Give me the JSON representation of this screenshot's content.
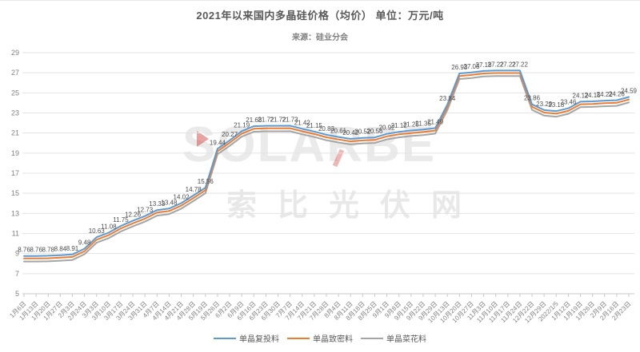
{
  "title": "2021年以来国内多晶硅价格（均价） 单位：万元/吨",
  "source": "来源：硅业分会",
  "watermark": {
    "latin": "SOLARBE",
    "cjk": "索比光伏网"
  },
  "colors": {
    "accent_blue": "#5B9BD5",
    "accent_orange": "#ED7D31",
    "accent_gray": "#A5A5A5",
    "red_accent": "#CD322D"
  },
  "chart_data": {
    "type": "line",
    "title": "2021年以来国内多晶硅价格（均价） 单位：万元/吨",
    "subtitle": "来源：硅业分会",
    "xlabel": "",
    "ylabel": "",
    "ylim": [
      5,
      29
    ],
    "yticks": [
      5,
      7,
      9,
      11,
      13,
      15,
      17,
      19,
      21,
      23,
      25,
      27,
      29
    ],
    "grid": true,
    "legend_position": "bottom",
    "x": [
      "1月6日",
      "1月13日",
      "1月20日",
      "1月27日",
      "2月3日",
      "2月24日",
      "3月3日",
      "3月10日",
      "3月17日",
      "3月24日",
      "3月31日",
      "4月7日",
      "4月14日",
      "4月21日",
      "4月28日",
      "5月19日",
      "5月26日",
      "6月2日",
      "6月9日",
      "6月16日",
      "6月23日",
      "6月30日",
      "7月7日",
      "7月14日",
      "7月21日",
      "7月28日",
      "8月4日",
      "8月11日",
      "8月18日",
      "8月25日",
      "9月1日",
      "9月8日",
      "9月15日",
      "9月22日",
      "9月29日",
      "10月13日",
      "10月20日",
      "10月27日",
      "11月3日",
      "11月10日",
      "11月17日",
      "11月24日",
      "12月22日",
      "12月29日",
      "2022/1/5",
      "1月12日",
      "1月19日",
      "1月26日",
      "2月9日",
      "2月16日",
      "2月23日"
    ],
    "series": [
      {
        "name": "单晶复投料",
        "color": "#5B9BD5",
        "labeled": true,
        "values": [
          8.76,
          8.76,
          8.78,
          8.84,
          8.91,
          9.48,
          10.63,
          11.08,
          11.75,
          12.26,
          12.73,
          13.33,
          13.48,
          14.02,
          14.78,
          15.56,
          19.44,
          20.27,
          21.19,
          21.68,
          21.72,
          21.72,
          21.73,
          21.42,
          21.15,
          20.83,
          20.61,
          20.42,
          20.52,
          20.56,
          20.92,
          21.12,
          21.25,
          21.35,
          21.49,
          23.84,
          26.93,
          27.03,
          27.18,
          27.22,
          27.22,
          27.22,
          23.86,
          23.29,
          23.18,
          23.46,
          24.12,
          24.15,
          24.22,
          24.26,
          24.59
        ]
      },
      {
        "name": "单晶致密料",
        "color": "#ED7D31",
        "labeled": false,
        "values": [
          8.51,
          8.51,
          8.53,
          8.59,
          8.66,
          9.23,
          10.38,
          10.83,
          11.5,
          12.01,
          12.48,
          13.08,
          13.23,
          13.77,
          14.53,
          15.31,
          19.19,
          20.02,
          20.94,
          21.43,
          21.47,
          21.47,
          21.48,
          21.17,
          20.9,
          20.58,
          20.36,
          20.17,
          20.27,
          20.31,
          20.67,
          20.87,
          21.0,
          21.1,
          21.24,
          23.59,
          26.68,
          26.78,
          26.93,
          26.97,
          26.97,
          26.97,
          23.61,
          23.04,
          22.93,
          23.21,
          23.87,
          23.9,
          23.97,
          24.01,
          24.34
        ]
      },
      {
        "name": "单晶菜花料",
        "color": "#A5A5A5",
        "labeled": false,
        "values": [
          8.21,
          8.21,
          8.23,
          8.29,
          8.36,
          8.93,
          10.08,
          10.53,
          11.2,
          11.71,
          12.18,
          12.78,
          12.93,
          13.47,
          14.23,
          15.01,
          18.89,
          19.72,
          20.64,
          21.13,
          21.17,
          21.17,
          21.18,
          20.87,
          20.6,
          20.28,
          20.06,
          19.87,
          19.97,
          20.01,
          20.37,
          20.57,
          20.7,
          20.8,
          20.94,
          23.29,
          26.38,
          26.48,
          26.63,
          26.67,
          26.67,
          26.67,
          23.31,
          22.74,
          22.63,
          22.91,
          23.57,
          23.6,
          23.67,
          23.71,
          24.04
        ]
      }
    ]
  }
}
